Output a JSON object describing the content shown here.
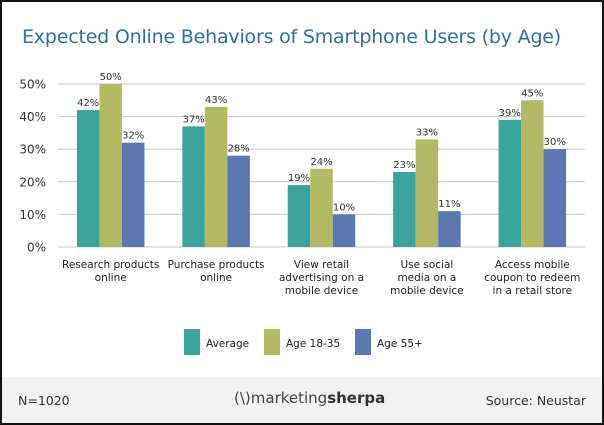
{
  "chart_data": {
    "type": "bar",
    "title": "Expected Online Behaviors of Smartphone Users (by Age)",
    "categories": [
      [
        "Research products",
        "online"
      ],
      [
        "Purchase products",
        "online"
      ],
      [
        "View retail",
        "advertising on a",
        "mobile device"
      ],
      [
        "Use social",
        "media on a",
        "mobile device"
      ],
      [
        "Access mobile",
        "coupon to redeem",
        "in a retail store"
      ]
    ],
    "series": [
      {
        "name": "Average",
        "color": "#3aa39c",
        "values": [
          42,
          37,
          19,
          23,
          39
        ]
      },
      {
        "name": "Age 18-35",
        "color": "#b4b963",
        "values": [
          50,
          43,
          24,
          33,
          45
        ]
      },
      {
        "name": "Age 55+",
        "color": "#5b77b0",
        "values": [
          32,
          28,
          10,
          11,
          30
        ]
      }
    ],
    "ylim": [
      0,
      50
    ],
    "yticks": [
      "0%",
      "10%",
      "20%",
      "30%",
      "40%",
      "50%"
    ],
    "grid": true,
    "legend": "bottom"
  },
  "footer": {
    "sample": "N=1020",
    "logo_light": "marketing",
    "logo_bold": "sherpa",
    "source": "Source: Neustar"
  }
}
